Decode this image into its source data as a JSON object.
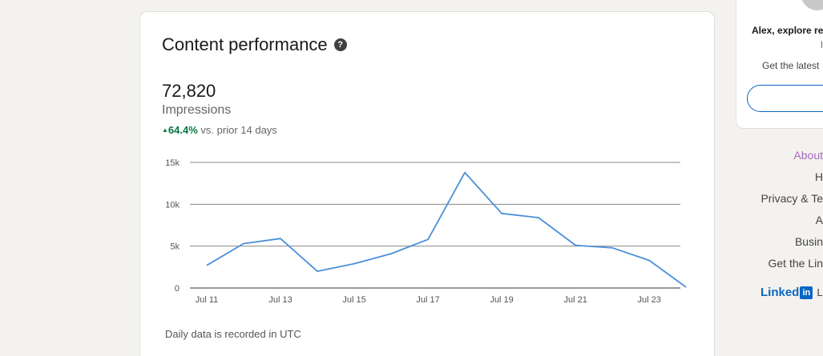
{
  "card": {
    "title": "Content performance",
    "help_icon": "help-icon",
    "metric_value": "72,820",
    "metric_label": "Impressions",
    "change_pct": "64.4%",
    "change_text": "vs. prior 14 days",
    "footnote": "Daily data is recorded in UTC"
  },
  "chart_data": {
    "type": "line",
    "x": [
      "Jul 11",
      "Jul 12",
      "Jul 13",
      "Jul 14",
      "Jul 15",
      "Jul 16",
      "Jul 17",
      "Jul 18",
      "Jul 19",
      "Jul 20",
      "Jul 21",
      "Jul 22",
      "Jul 23",
      "Jul 24"
    ],
    "xtick_labels": [
      "Jul 11",
      "Jul 13",
      "Jul 15",
      "Jul 17",
      "Jul 19",
      "Jul 21",
      "Jul 23"
    ],
    "series": [
      {
        "values": [
          2700,
          5300,
          5900,
          2000,
          2900,
          4100,
          5800,
          13800,
          8900,
          8400,
          5100,
          4800,
          3300,
          100
        ]
      }
    ],
    "yticks": [
      0,
      5000,
      10000,
      15000
    ],
    "ytick_labels": [
      "0",
      "5k",
      "10k",
      "15k"
    ],
    "ylim": [
      0,
      15000
    ],
    "grid": true,
    "line_color": "#4a90d9"
  },
  "side": {
    "name": "Alex, explore re",
    "dash": "l",
    "sub": "Get the latest",
    "button_label": ""
  },
  "footer": {
    "links": [
      "About",
      "H",
      "Privacy & Te",
      "A",
      "Busin",
      "Get the Lin"
    ],
    "brand_word": "Linked",
    "brand_in": "in",
    "brand_suffix": "Li"
  }
}
